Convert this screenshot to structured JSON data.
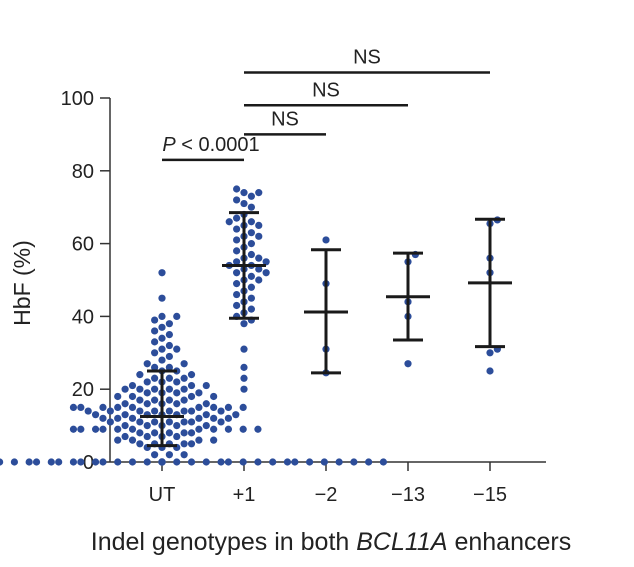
{
  "chart_data": {
    "type": "scatter",
    "title": "",
    "xlabel_parts": [
      "Indel genotypes in both ",
      "BCL11A",
      " enhancers"
    ],
    "ylabel": "HbF (%)",
    "categories": [
      "UT",
      "+1",
      "−2",
      "−13",
      "−15"
    ],
    "ylim": [
      0,
      100
    ],
    "yticks": [
      0,
      20,
      40,
      60,
      80,
      100
    ],
    "grid": false,
    "series": [
      {
        "name": "UT",
        "points": [
          0,
          0,
          0,
          0,
          0,
          0,
          0,
          0,
          0,
          0,
          0,
          0,
          0,
          0,
          0,
          0,
          0,
          0,
          0,
          0,
          0,
          0,
          0,
          0,
          0,
          0,
          0,
          0,
          0,
          0,
          0,
          0,
          0,
          0,
          0,
          0,
          0,
          0,
          0,
          0,
          0,
          0,
          2,
          2,
          2,
          4,
          4,
          4,
          5,
          5,
          5,
          5,
          5,
          6,
          6,
          6,
          6,
          7,
          7,
          7,
          7,
          8,
          8,
          8,
          8,
          8,
          9,
          9,
          9,
          9,
          9,
          9,
          9,
          9,
          9,
          9,
          9,
          10,
          10,
          10,
          10,
          10,
          11,
          11,
          11,
          11,
          11,
          11,
          11,
          12,
          12,
          12,
          12,
          12,
          12,
          13,
          13,
          13,
          13,
          13,
          13,
          13,
          14,
          14,
          14,
          14,
          14,
          14,
          14,
          14,
          15,
          15,
          15,
          15,
          15,
          15,
          15,
          15,
          15,
          16,
          16,
          16,
          16,
          16,
          17,
          17,
          17,
          17,
          18,
          18,
          18,
          18,
          19,
          19,
          19,
          19,
          20,
          20,
          20,
          20,
          20,
          21,
          21,
          21,
          22,
          22,
          22,
          23,
          23,
          23,
          24,
          24,
          25,
          25,
          26,
          26,
          27,
          27,
          28,
          29,
          30,
          31,
          31,
          32,
          33,
          34,
          35,
          36,
          37,
          38,
          39,
          40,
          40,
          45,
          52
        ],
        "mean": 12.5,
        "sd_low": 4.5,
        "sd_high": 25
      },
      {
        "name": "+1",
        "points": [
          20,
          23,
          26,
          31,
          38,
          39,
          40,
          41,
          42,
          43,
          44,
          45,
          46,
          47,
          48,
          49,
          50,
          50,
          51,
          52,
          52,
          53,
          53,
          54,
          54,
          55,
          55,
          56,
          56,
          57,
          58,
          59,
          60,
          61,
          62,
          62,
          63,
          64,
          65,
          65,
          66,
          66,
          67,
          68,
          70,
          71,
          72,
          73,
          74,
          74,
          75
        ],
        "mean": 54,
        "sd_low": 39.5,
        "sd_high": 68.5
      },
      {
        "name": "−2",
        "points": [
          24.5,
          31,
          49,
          61
        ],
        "mean": 41.2,
        "sd_low": 24.5,
        "sd_high": 58.3
      },
      {
        "name": "−13",
        "points": [
          27,
          40,
          44,
          55,
          57
        ],
        "mean": 45.4,
        "sd_low": 33.5,
        "sd_high": 57.4
      },
      {
        "name": "−15",
        "points": [
          25,
          30,
          31,
          52,
          56,
          65.5,
          66.5
        ],
        "mean": 49.2,
        "sd_low": 31.7,
        "sd_high": 66.7
      }
    ],
    "significance": [
      {
        "from": "UT",
        "to": "+1",
        "label_prefix": "P",
        "label_rest": " < 0.0001",
        "level": 83
      },
      {
        "from": "+1",
        "to": "−2",
        "label": "NS",
        "level": 90
      },
      {
        "from": "+1",
        "to": "−13",
        "label": "NS",
        "level": 98
      },
      {
        "from": "+1",
        "to": "−15",
        "label": "NS",
        "level": 107
      }
    ],
    "colors": {
      "points": "#2c4d9a",
      "bars": "#1a1a1a",
      "axis": "#333333"
    }
  }
}
